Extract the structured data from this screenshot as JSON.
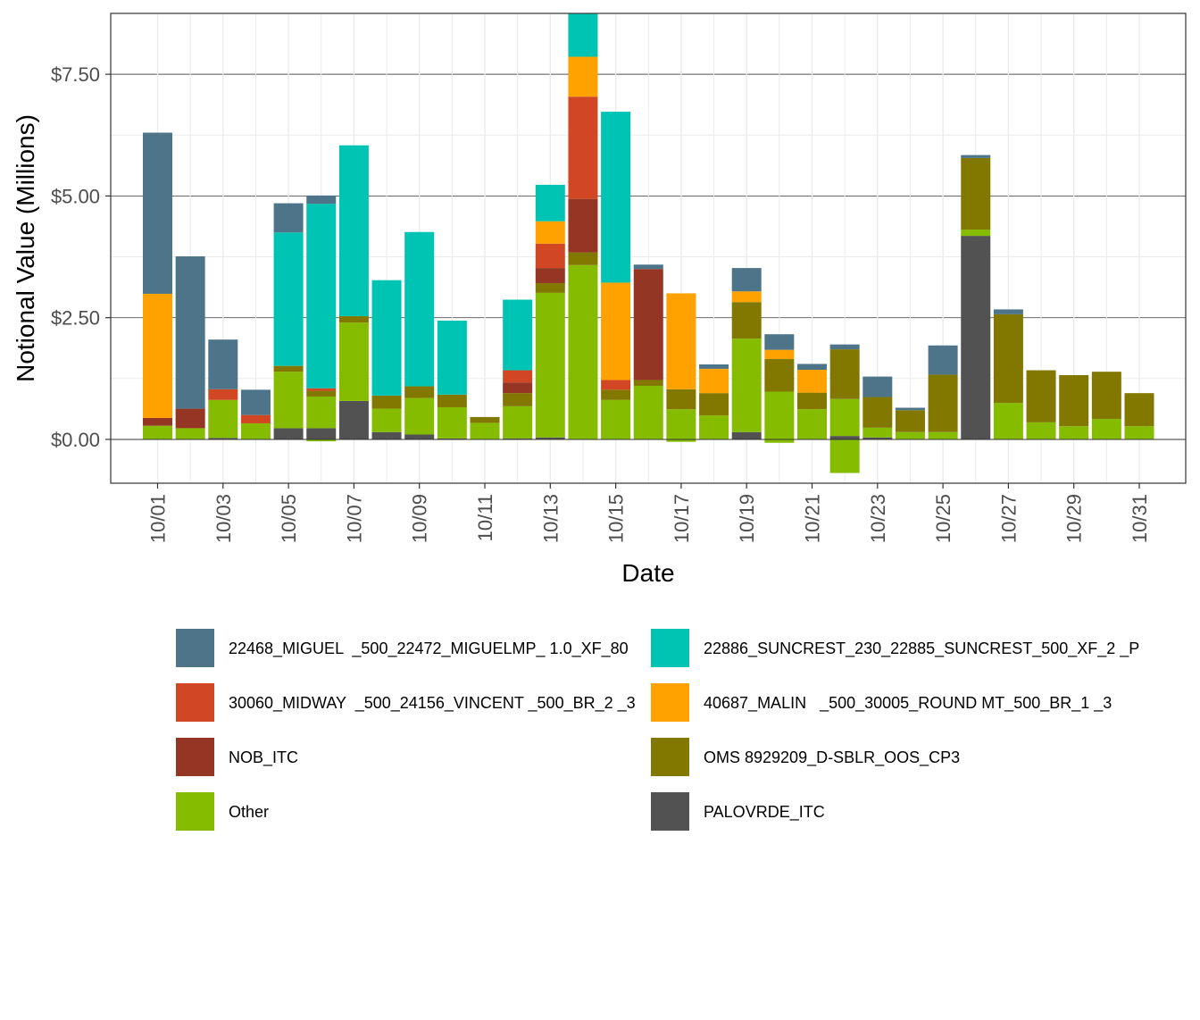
{
  "chart_data": {
    "type": "bar",
    "stacked": true,
    "xlabel": "Date",
    "ylabel": "Notional Value (Millions)",
    "ylim": [
      -0.9,
      8.75
    ],
    "y_ticks": [
      0,
      2.5,
      5,
      7.5
    ],
    "y_tick_labels": [
      "$0.00",
      "$2.50",
      "$5.00",
      "$7.50"
    ],
    "x_tick_labels": [
      "10/01",
      "10/03",
      "10/05",
      "10/07",
      "10/09",
      "10/11",
      "10/13",
      "10/15",
      "10/17",
      "10/19",
      "10/21",
      "10/23",
      "10/25",
      "10/27",
      "10/29",
      "10/31"
    ],
    "grid": true,
    "legend_position": "bottom",
    "categories": [
      "10/01",
      "10/02",
      "10/03",
      "10/04",
      "10/05",
      "10/06",
      "10/07",
      "10/08",
      "10/09",
      "10/10",
      "10/11",
      "10/12",
      "10/13",
      "10/14",
      "10/15",
      "10/16",
      "10/17",
      "10/18",
      "10/19",
      "10/20",
      "10/21",
      "10/22",
      "10/23",
      "10/24",
      "10/25",
      "10/26",
      "10/27",
      "10/28",
      "10/29",
      "10/30",
      "10/31"
    ],
    "series": [
      {
        "name": "PALOVRDE_ITC",
        "color": "#525252",
        "values": [
          0,
          0,
          0.03,
          0,
          0.23,
          0.23,
          0.79,
          0.15,
          0.1,
          0.02,
          0,
          0.02,
          0.04,
          0,
          0,
          0,
          0,
          0,
          0.15,
          0,
          0,
          0.07,
          0.04,
          0,
          0,
          4.18,
          0,
          0,
          0,
          0,
          0
        ]
      },
      {
        "name": "Other",
        "color": "#86BC00",
        "values": [
          0.28,
          0.23,
          0.78,
          0.33,
          1.16,
          0.65,
          1.61,
          0.48,
          0.75,
          0.64,
          0.34,
          0.66,
          2.97,
          3.58,
          0.81,
          1.1,
          0.62,
          0.49,
          1.92,
          0.98,
          0.62,
          0.76,
          0.2,
          0.15,
          0.15,
          0.13,
          0.75,
          0.35,
          0.27,
          0.42,
          0.27
        ]
      },
      {
        "name": "Other",
        "negative": true,
        "color": "#86BC00",
        "values": [
          0,
          0,
          0,
          0,
          0,
          -0.04,
          0,
          0,
          0,
          0,
          0,
          0,
          0,
          0,
          0,
          0,
          -0.05,
          0,
          0,
          -0.07,
          0,
          -0.69,
          0,
          0,
          0,
          0,
          0,
          0,
          0,
          0,
          0
        ]
      },
      {
        "name": "OMS 8929209_D-SBLR_OOS_CP3",
        "color": "#827800",
        "values": [
          0,
          0,
          0,
          0,
          0.12,
          0.12,
          0.13,
          0.27,
          0.24,
          0.26,
          0.12,
          0.27,
          0.2,
          0.26,
          0.21,
          0.12,
          0.41,
          0.46,
          0.75,
          0.67,
          0.34,
          1.02,
          0.63,
          0.45,
          1.18,
          1.47,
          1.82,
          1.07,
          1.05,
          0.97,
          0.68
        ]
      },
      {
        "name": "NOB_ITC",
        "color": "#953523",
        "values": [
          0.16,
          0.4,
          0,
          0,
          0,
          0,
          0,
          0,
          0,
          0,
          0,
          0.22,
          0.31,
          1.1,
          0,
          2.28,
          0,
          0,
          0,
          0,
          0,
          0,
          0,
          0,
          0,
          0,
          0,
          0,
          0,
          0,
          0
        ]
      },
      {
        "name": "30060_MIDWAY  _500_24156_VINCENT _500_BR_2 _3",
        "color": "#D24723",
        "values": [
          0,
          0,
          0.22,
          0.17,
          0,
          0.05,
          0,
          0,
          0,
          0,
          0,
          0.25,
          0.5,
          2.1,
          0.2,
          0,
          0,
          0,
          0,
          0,
          0,
          0,
          0,
          0,
          0,
          0,
          0,
          0,
          0,
          0,
          0
        ]
      },
      {
        "name": "40687_MALIN   _500_30005_ROUND MT_500_BR_1 _3",
        "color": "#FFA200",
        "values": [
          2.55,
          0,
          0,
          0,
          0,
          0,
          0,
          0,
          0,
          0,
          0,
          0,
          0.46,
          0.82,
          2.0,
          0,
          1.97,
          0.5,
          0.22,
          0.19,
          0.47,
          0,
          0,
          0,
          0,
          0,
          0,
          0,
          0,
          0,
          0
        ]
      },
      {
        "name": "22886_SUNCREST_230_22885_SUNCREST_500_XF_2 _P",
        "color": "#00C4B3",
        "values": [
          0,
          0,
          0,
          0,
          2.74,
          3.79,
          3.51,
          2.37,
          3.17,
          1.52,
          0,
          1.45,
          0.75,
          0.88,
          3.51,
          0,
          0,
          0,
          0,
          0,
          0,
          0,
          0,
          0,
          0,
          0,
          0,
          0,
          0,
          0,
          0
        ]
      },
      {
        "name": "22468_MIGUEL  _500_22472_MIGUELMP_ 1.0_XF_80",
        "color": "#4D7489",
        "values": [
          3.31,
          3.13,
          1.02,
          0.52,
          0.6,
          0.17,
          0,
          0,
          0,
          0,
          0,
          0,
          0,
          0,
          0,
          0.09,
          0,
          0.09,
          0.48,
          0.32,
          0.12,
          0.1,
          0.42,
          0.05,
          0.6,
          0.06,
          0.1,
          0,
          0,
          0,
          0
        ]
      }
    ],
    "legend": [
      {
        "label": "22468_MIGUEL  _500_22472_MIGUELMP_ 1.0_XF_80",
        "color": "#4D7489"
      },
      {
        "label": "22886_SUNCREST_230_22885_SUNCREST_500_XF_2 _P",
        "color": "#00C4B3"
      },
      {
        "label": "30060_MIDWAY  _500_24156_VINCENT _500_BR_2 _3",
        "color": "#D24723"
      },
      {
        "label": "40687_MALIN   _500_30005_ROUND MT_500_BR_1 _3",
        "color": "#FFA200"
      },
      {
        "label": "NOB_ITC",
        "color": "#953523"
      },
      {
        "label": "OMS 8929209_D-SBLR_OOS_CP3",
        "color": "#827800"
      },
      {
        "label": "Other",
        "color": "#86BC00"
      },
      {
        "label": "PALOVRDE_ITC",
        "color": "#525252"
      }
    ]
  }
}
